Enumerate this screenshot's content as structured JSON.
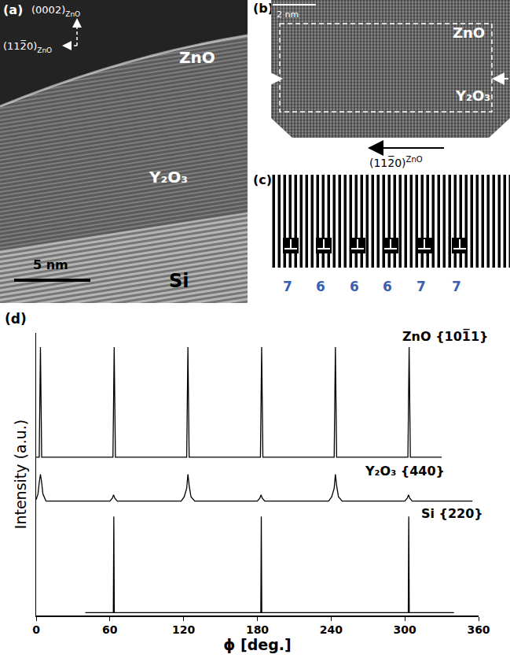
{
  "figure": {
    "a": {
      "label": "(a)",
      "directions": [
        "(0002)",
        "(112̅0)"
      ],
      "direction_subscript": "ZnO",
      "layers": [
        "ZnO",
        "Y₂O₃",
        "Si"
      ],
      "scale_bar": "5 nm"
    },
    "b": {
      "label": "(b)",
      "scale_bar": "2 nm",
      "layers": [
        "ZnO",
        "Y₂O₃"
      ],
      "direction": "(112̅0)",
      "direction_superscript": "ZnO"
    },
    "c": {
      "label": "(c)",
      "counts": [
        7,
        6,
        6,
        6,
        7,
        7
      ]
    }
  },
  "chart_data": {
    "label": "(d)",
    "type": "line",
    "x_label": "ϕ [deg.]",
    "y_label": "Intensity (a.u.)",
    "xlim": [
      0,
      360
    ],
    "xticks": [
      0,
      60,
      120,
      180,
      240,
      300,
      360
    ],
    "ylim": [
      0,
      100
    ],
    "tick_labels": "x",
    "grid": false,
    "series": [
      {
        "name": "ZnO {101̅1}",
        "color": "#000000",
        "x": [
          0,
          2.5,
          3.5,
          4.5,
          62.5,
          63.5,
          64.5,
          122.5,
          123.5,
          124.5,
          182.5,
          183.5,
          184.5,
          242.5,
          243.5,
          244.5,
          302.5,
          303.5,
          304.5,
          330
        ],
        "values": [
          56,
          56,
          95,
          56,
          56,
          95,
          56,
          56,
          95,
          56,
          56,
          95,
          56,
          56,
          95,
          56,
          56,
          95,
          56,
          56
        ]
      },
      {
        "name": "Y₂O₃ {440}",
        "color": "#000000",
        "x": [
          0,
          1.5,
          2.5,
          3.5,
          4.5,
          5.5,
          8,
          60,
          62,
          63,
          64,
          66,
          118,
          120.5,
          122.5,
          123.5,
          124.5,
          126,
          129,
          180,
          182,
          183,
          184,
          186,
          238,
          240.5,
          242.5,
          243.5,
          244.5,
          246,
          249,
          300,
          302,
          303,
          304,
          306,
          355
        ],
        "values": [
          41,
          43,
          47,
          50,
          47,
          43,
          40.5,
          40.5,
          41.5,
          42.7,
          41.5,
          40.5,
          40.5,
          42,
          45,
          50,
          46,
          42,
          40.5,
          40.5,
          41.5,
          42.7,
          41.5,
          40.5,
          40.5,
          42,
          45,
          50,
          46,
          42,
          40.5,
          40.5,
          41.5,
          42.7,
          41.5,
          40.5,
          40.5
        ]
      },
      {
        "name": "Si {220}",
        "color": "#000000",
        "x": [
          40,
          62.8,
          63.2,
          63.6,
          182.8,
          183.2,
          183.6,
          302.8,
          303.2,
          303.6,
          340
        ],
        "values": [
          1,
          1,
          35,
          1,
          1,
          35,
          1,
          1,
          35,
          1,
          1
        ]
      }
    ]
  }
}
